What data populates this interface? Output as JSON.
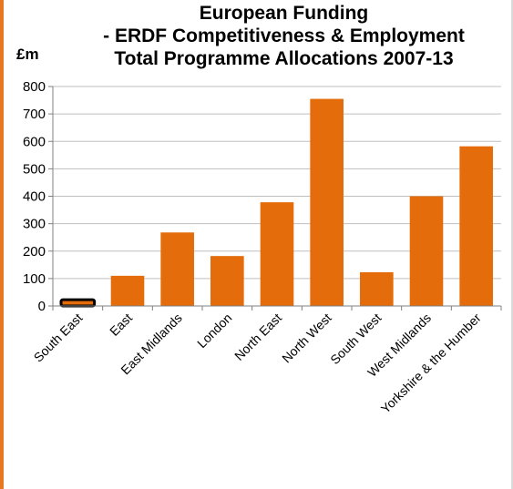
{
  "chart_data": {
    "type": "bar",
    "title_lines": [
      "European Funding",
      "- ERDF Competitiveness & Employment",
      "Total Programme Allocations 2007-13"
    ],
    "ylabel": "£m",
    "xlabel": "",
    "ylim": [
      0,
      800
    ],
    "yticks": [
      "0",
      "100",
      "200",
      "300",
      "400",
      "500",
      "600",
      "700",
      "800"
    ],
    "grid": true,
    "categories": [
      "South East",
      "East",
      "East Midlands",
      "London",
      "North East",
      "North West",
      "South West",
      "West Midlands",
      "Yorkshire & the Humber"
    ],
    "values": [
      23,
      110,
      268,
      182,
      378,
      755,
      123,
      400,
      582
    ],
    "highlighted_category": "South East",
    "colors": {
      "bar": "#e46c0a",
      "highlight_outline": "#000000",
      "grid": "#bfbfbf",
      "axis": "#808080"
    }
  }
}
